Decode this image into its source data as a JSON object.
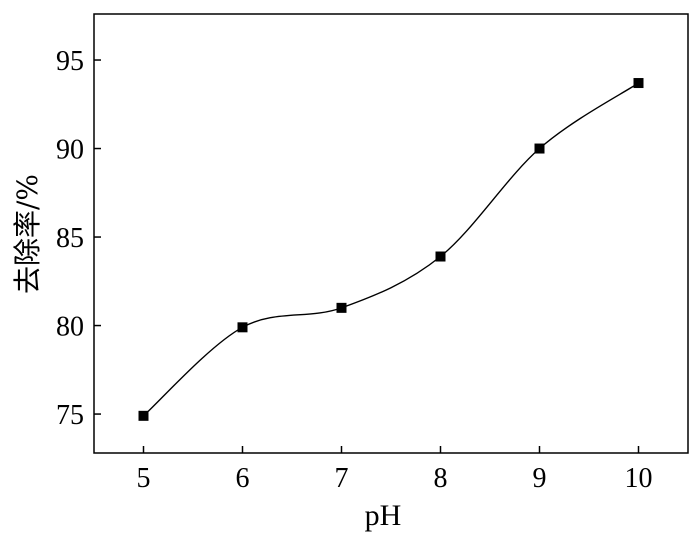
{
  "chart_data": {
    "type": "line",
    "title": "",
    "xlabel": "pH",
    "ylabel": "去除率/%",
    "x": [
      5,
      6,
      7,
      8,
      9,
      10
    ],
    "series": [
      {
        "values": [
          74.9,
          79.9,
          81.0,
          83.9,
          90.0,
          93.7
        ]
      }
    ],
    "xlim": [
      4.5,
      10.5
    ],
    "ylim": [
      72.8,
      97.6
    ],
    "xticks": [
      "5",
      "6",
      "7",
      "8",
      "9",
      "10"
    ],
    "yticks": [
      "75",
      "80",
      "85",
      "90",
      "95"
    ],
    "grid": false,
    "legend": "none",
    "line_style": "smooth spline",
    "marker": "filled square",
    "color": "#000000"
  }
}
